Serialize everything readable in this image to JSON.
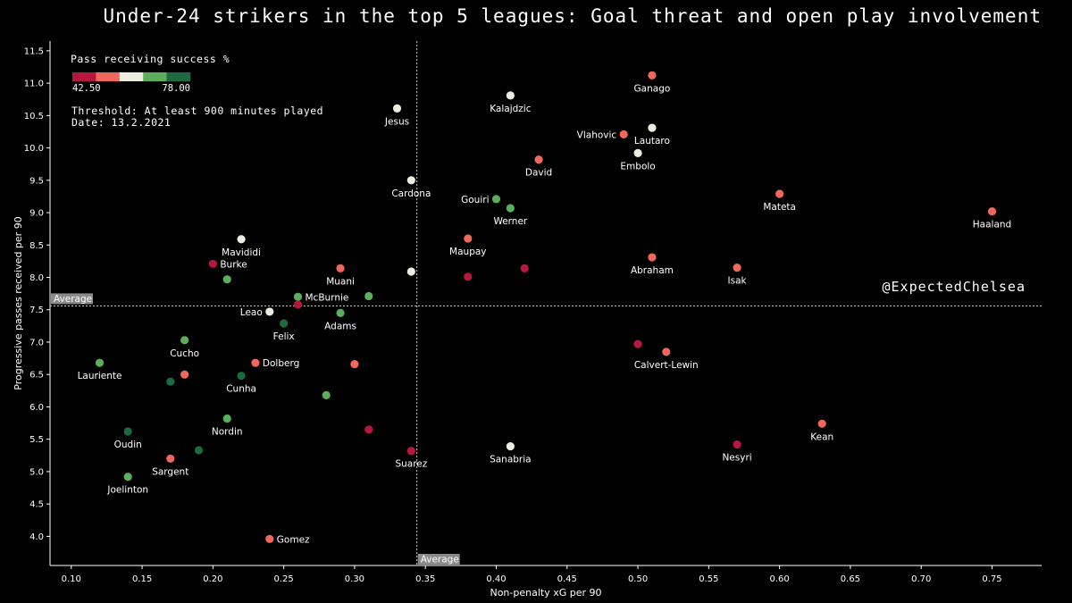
{
  "title": "Under-24 strikers in the top 5 leagues: Goal threat and open play involvement",
  "chart_data": {
    "type": "scatter",
    "xlabel": "Non-penalty xG per 90",
    "ylabel": "Progressive passes received per 90",
    "xlim": [
      0.085,
      0.785
    ],
    "ylim": [
      3.55,
      11.65
    ],
    "xticks": [
      "0.10",
      "0.15",
      "0.20",
      "0.25",
      "0.30",
      "0.35",
      "0.40",
      "0.45",
      "0.50",
      "0.55",
      "0.60",
      "0.65",
      "0.70",
      "0.75"
    ],
    "yticks": [
      "4.0",
      "4.5",
      "5.0",
      "5.5",
      "6.0",
      "6.5",
      "7.0",
      "7.5",
      "8.0",
      "8.5",
      "9.0",
      "9.5",
      "10.0",
      "10.5",
      "11.0",
      "11.5"
    ],
    "average_x": 0.344,
    "average_y": 7.56,
    "average_label": "Average",
    "colorbar": {
      "title": "Pass receiving success %",
      "min_label": "42.50",
      "max_label": "78.00",
      "colors": [
        "#b5173f",
        "#f0675d",
        "#ececdf",
        "#5cae5c",
        "#1e6a40"
      ]
    },
    "threshold_text": "Threshold: At least 900 minutes played",
    "date_text": "Date: 13.2.2021",
    "watermark": "@ExpectedChelsea",
    "points": [
      {
        "label": "Haaland",
        "x": 0.75,
        "y": 9.02,
        "color": "#f0675d",
        "lp": "below"
      },
      {
        "label": "Ganago",
        "x": 0.51,
        "y": 11.12,
        "color": "#f0675d",
        "lp": "below"
      },
      {
        "label": "Kalajdzic",
        "x": 0.41,
        "y": 10.81,
        "color": "#ececdf",
        "lp": "below"
      },
      {
        "label": "Jesus",
        "x": 0.33,
        "y": 10.61,
        "color": "#ececdf",
        "lp": "below"
      },
      {
        "label": "Vlahovic",
        "x": 0.49,
        "y": 10.21,
        "color": "#f0675d",
        "lp": "left"
      },
      {
        "label": "Lautaro",
        "x": 0.51,
        "y": 10.31,
        "color": "#ececdf",
        "lp": "below"
      },
      {
        "label": "Embolo",
        "x": 0.5,
        "y": 9.92,
        "color": "#ececdf",
        "lp": "below"
      },
      {
        "label": "David",
        "x": 0.43,
        "y": 9.82,
        "color": "#f0675d",
        "lp": "below"
      },
      {
        "label": "Cardona",
        "x": 0.34,
        "y": 9.5,
        "color": "#ececdf",
        "lp": "below"
      },
      {
        "label": "Gouiri",
        "x": 0.4,
        "y": 9.21,
        "color": "#5cae5c",
        "lp": "left"
      },
      {
        "label": "Werner",
        "x": 0.41,
        "y": 9.07,
        "color": "#5cae5c",
        "lp": "below"
      },
      {
        "label": "Mateta",
        "x": 0.6,
        "y": 9.29,
        "color": "#f0675d",
        "lp": "below"
      },
      {
        "label": "Mavididi",
        "x": 0.22,
        "y": 8.59,
        "color": "#ececdf",
        "lp": "below"
      },
      {
        "label": "Maupay",
        "x": 0.38,
        "y": 8.6,
        "color": "#f0675d",
        "lp": "below"
      },
      {
        "label": "Burke",
        "x": 0.2,
        "y": 8.21,
        "color": "#b5173f",
        "lp": "right"
      },
      {
        "label": "Abraham",
        "x": 0.51,
        "y": 8.31,
        "color": "#f0675d",
        "lp": "below"
      },
      {
        "label": "Isak",
        "x": 0.57,
        "y": 8.15,
        "color": "#f0675d",
        "lp": "below"
      },
      {
        "label": "Muani",
        "x": 0.29,
        "y": 8.14,
        "color": "#f0675d",
        "lp": "below"
      },
      {
        "label": "",
        "x": 0.34,
        "y": 8.09,
        "color": "#ececdf",
        "lp": "none"
      },
      {
        "label": "",
        "x": 0.42,
        "y": 8.14,
        "color": "#b5173f",
        "lp": "none"
      },
      {
        "label": "",
        "x": 0.38,
        "y": 8.01,
        "color": "#b5173f",
        "lp": "none"
      },
      {
        "label": "",
        "x": 0.21,
        "y": 7.97,
        "color": "#5cae5c",
        "lp": "none"
      },
      {
        "label": "McBurnie",
        "x": 0.26,
        "y": 7.7,
        "color": "#5cae5c",
        "lp": "right"
      },
      {
        "label": "",
        "x": 0.31,
        "y": 7.71,
        "color": "#5cae5c",
        "lp": "none"
      },
      {
        "label": "",
        "x": 0.26,
        "y": 7.58,
        "color": "#b5173f",
        "lp": "none"
      },
      {
        "label": "Leao",
        "x": 0.24,
        "y": 7.47,
        "color": "#ececdf",
        "lp": "left"
      },
      {
        "label": "Adams",
        "x": 0.29,
        "y": 7.45,
        "color": "#5cae5c",
        "lp": "below"
      },
      {
        "label": "Felix",
        "x": 0.25,
        "y": 7.29,
        "color": "#1e6a40",
        "lp": "below"
      },
      {
        "label": "Cucho",
        "x": 0.18,
        "y": 7.03,
        "color": "#5cae5c",
        "lp": "below"
      },
      {
        "label": "",
        "x": 0.5,
        "y": 6.97,
        "color": "#b5173f",
        "lp": "none"
      },
      {
        "label": "Calvert-Lewin",
        "x": 0.52,
        "y": 6.85,
        "color": "#f0675d",
        "lp": "below"
      },
      {
        "label": "Lauriente",
        "x": 0.12,
        "y": 6.68,
        "color": "#5cae5c",
        "lp": "below"
      },
      {
        "label": "Dolberg",
        "x": 0.23,
        "y": 6.68,
        "color": "#f0675d",
        "lp": "right"
      },
      {
        "label": "",
        "x": 0.3,
        "y": 6.66,
        "color": "#f0675d",
        "lp": "none"
      },
      {
        "label": "",
        "x": 0.18,
        "y": 6.5,
        "color": "#f0675d",
        "lp": "none"
      },
      {
        "label": "Cunha",
        "x": 0.22,
        "y": 6.48,
        "color": "#1e6a40",
        "lp": "below"
      },
      {
        "label": "",
        "x": 0.17,
        "y": 6.39,
        "color": "#1e6a40",
        "lp": "none"
      },
      {
        "label": "",
        "x": 0.28,
        "y": 6.18,
        "color": "#5cae5c",
        "lp": "none"
      },
      {
        "label": "Nordin",
        "x": 0.21,
        "y": 5.82,
        "color": "#5cae5c",
        "lp": "below"
      },
      {
        "label": "Kean",
        "x": 0.63,
        "y": 5.74,
        "color": "#f0675d",
        "lp": "below"
      },
      {
        "label": "",
        "x": 0.31,
        "y": 5.65,
        "color": "#b5173f",
        "lp": "none"
      },
      {
        "label": "Oudin",
        "x": 0.14,
        "y": 5.62,
        "color": "#1e6a40",
        "lp": "below"
      },
      {
        "label": "Nesyri",
        "x": 0.57,
        "y": 5.42,
        "color": "#b5173f",
        "lp": "below"
      },
      {
        "label": "Sanabria",
        "x": 0.41,
        "y": 5.39,
        "color": "#ececdf",
        "lp": "below"
      },
      {
        "label": "",
        "x": 0.19,
        "y": 5.33,
        "color": "#1e6a40",
        "lp": "none"
      },
      {
        "label": "Suarez",
        "x": 0.34,
        "y": 5.32,
        "color": "#b5173f",
        "lp": "below"
      },
      {
        "label": "Sargent",
        "x": 0.17,
        "y": 5.2,
        "color": "#f0675d",
        "lp": "below"
      },
      {
        "label": "Joelinton",
        "x": 0.14,
        "y": 4.92,
        "color": "#5cae5c",
        "lp": "below"
      },
      {
        "label": "Gomez",
        "x": 0.24,
        "y": 3.96,
        "color": "#f0675d",
        "lp": "right"
      }
    ]
  }
}
